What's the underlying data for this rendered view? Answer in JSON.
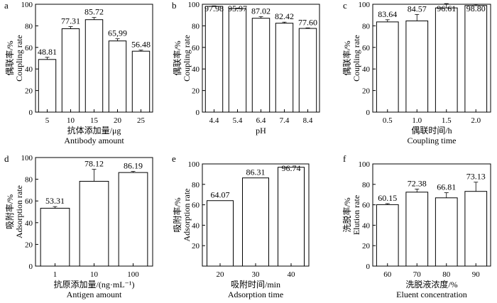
{
  "chart_data": [
    {
      "panel": "a",
      "type": "bar",
      "categories": [
        "5",
        "10",
        "15",
        "20",
        "25"
      ],
      "values": [
        48.81,
        77.31,
        85.72,
        65.99,
        56.48
      ],
      "errors": [
        2,
        2,
        2,
        2,
        1
      ],
      "value_labels": [
        "48.81",
        "77.31",
        "85.72",
        "65,99",
        "56.48"
      ],
      "xlabel_cn": "抗体添加量/μg",
      "xlabel_en": "Antibody amount",
      "ylabel_cn": "偶联率/%",
      "ylabel_en": "Coupling rate",
      "ylim": [
        0,
        100
      ],
      "yticks": [
        0,
        20,
        40,
        60,
        80,
        100
      ]
    },
    {
      "panel": "b",
      "type": "bar",
      "categories": [
        "4.4",
        "5.4",
        "6.4",
        "7.4",
        "8.4"
      ],
      "values": [
        97.98,
        95.97,
        87.02,
        82.42,
        77.6
      ],
      "errors": [
        0.5,
        0.5,
        1.5,
        1,
        0.5
      ],
      "value_labels": [
        "97.98",
        "95.97",
        "87.02",
        "82.42",
        "77.60"
      ],
      "xlabel_cn": "",
      "xlabel_en": "pH",
      "ylabel_cn": "偶联率/%",
      "ylabel_en": "Coupling rate",
      "ylim": [
        0,
        100
      ],
      "yticks": [
        0,
        20,
        40,
        60,
        80,
        100
      ]
    },
    {
      "panel": "c",
      "type": "bar",
      "categories": [
        "0.5",
        "1.0",
        "1.5",
        "2.0"
      ],
      "values": [
        83.64,
        84.57,
        96.61,
        98.8
      ],
      "errors": [
        2,
        6,
        4,
        1
      ],
      "value_labels": [
        "83.64",
        "84.57",
        "96.61",
        "98.80"
      ],
      "xlabel_cn": "偶联时间/h",
      "xlabel_en": "Coupling time",
      "ylabel_cn": "偶联率/%",
      "ylabel_en": "Coupling rate",
      "ylim": [
        0,
        100
      ],
      "yticks": [
        0,
        20,
        40,
        60,
        80,
        100
      ]
    },
    {
      "panel": "d",
      "type": "bar",
      "categories": [
        "1",
        "10",
        "100"
      ],
      "values": [
        53.31,
        78.12,
        86.19
      ],
      "errors": [
        1.5,
        11,
        1
      ],
      "value_labels": [
        "53.31",
        "78.12",
        "86.19"
      ],
      "xlabel_cn": "抗原添加量/(ng·mL⁻¹)",
      "xlabel_en": "Antigen amount",
      "ylabel_cn": "吸附率/%",
      "ylabel_en": "Adsorption rate",
      "ylim": [
        0,
        100
      ],
      "yticks": [
        0,
        20,
        40,
        60,
        80,
        100
      ]
    },
    {
      "panel": "e",
      "type": "bar",
      "categories": [
        "20",
        "30",
        "40"
      ],
      "values": [
        64.07,
        86.31,
        96.74
      ],
      "errors": [
        0,
        0,
        0
      ],
      "value_labels": [
        "64.07",
        "86.31",
        "96.74"
      ],
      "xlabel_cn": "吸附时间/min",
      "xlabel_en": "Adsorption time",
      "ylabel_cn": "吸附率/%",
      "ylabel_en": "Adsorption rate",
      "ylim": [
        0,
        100
      ],
      "yticks": [
        20,
        40,
        60,
        80,
        100
      ]
    },
    {
      "panel": "f",
      "type": "bar",
      "categories": [
        "60",
        "70",
        "80",
        "90"
      ],
      "values": [
        60.15,
        72.38,
        66.81,
        73.13
      ],
      "errors": [
        1,
        3,
        5,
        9
      ],
      "value_labels": [
        "60.15",
        "72.38",
        "66.81",
        "73.13"
      ],
      "xlabel_cn": "洗脱液浓度/%",
      "xlabel_en": "Eluent concentration",
      "ylabel_cn": "洗脱率/%",
      "ylabel_en": "Elution rate",
      "ylim": [
        0,
        100
      ],
      "yticks": [
        0,
        20,
        40,
        60,
        80,
        100
      ]
    }
  ]
}
